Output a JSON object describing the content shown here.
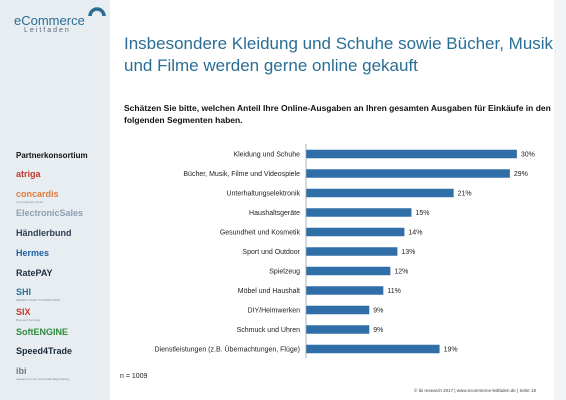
{
  "brand": {
    "logo_main": "eCommerce",
    "logo_sub": "Leitfaden"
  },
  "headline": "Insbesondere Kleidung und Schuhe sowie Bücher, Musik und Filme werden gerne online gekauft",
  "question": "Schätzen Sie bitte, welchen Anteil Ihre Online-Ausgaben an Ihren gesamten Ausgaben für Einkäufe in den folgenden Segmenten haben.",
  "sidebar": {
    "title": "Partnerkonsortium",
    "partners": [
      {
        "name": "atriga",
        "color": "#c0392b"
      },
      {
        "name": "concardis",
        "color": "#e07b39",
        "sub": "your payment expert"
      },
      {
        "name": "ElectronicSales",
        "color": "#8aa0b4"
      },
      {
        "name": "Händlerbund",
        "color": "#2c3e50"
      },
      {
        "name": "Hermes",
        "color": "#1f5f9e"
      },
      {
        "name": "RatePAY",
        "color": "#1f2d3d"
      },
      {
        "name": "SHI",
        "color": "#2a6e95",
        "sub": "SEARCH ANALYTICS BIG DATA"
      },
      {
        "name": "SIX",
        "color": "#c0392b",
        "sub": "Payment Services"
      },
      {
        "name": "SoftENGINE",
        "color": "#2e8b3e"
      },
      {
        "name": "Speed4Trade",
        "color": "#1a2a3a"
      },
      {
        "name": "ibi",
        "color": "#6b7c8c",
        "sub": "research an der Universität Regensburg"
      }
    ]
  },
  "chart_data": {
    "type": "bar",
    "orientation": "horizontal",
    "categories": [
      "Kleidung und Schuhe",
      "Bücher, Musik, Filme und Videospiele",
      "Unterhaltungselektronik",
      "Haushaltsgeräte",
      "Gesundheit und Kosmetik",
      "Sport und Outdoor",
      "Spielzeug",
      "Möbel und Haushalt",
      "DIY/Heimwerken",
      "Schmuck und Uhren",
      "Dienstleistungen (z.B. Übernachtungen, Flüge)"
    ],
    "values": [
      30,
      29,
      21,
      15,
      14,
      13,
      12,
      11,
      9,
      9,
      19
    ],
    "value_labels": [
      "30%",
      "29%",
      "21%",
      "15%",
      "14%",
      "13%",
      "12%",
      "11%",
      "9%",
      "9%",
      "19%"
    ],
    "xlim": [
      0,
      40
    ],
    "bar_color": "#2f6ea7",
    "grid": false
  },
  "sample_size": "n = 1009",
  "footer": "© ibi research 2017 | www.ecommerce-leitfaden.de | Seite 18"
}
